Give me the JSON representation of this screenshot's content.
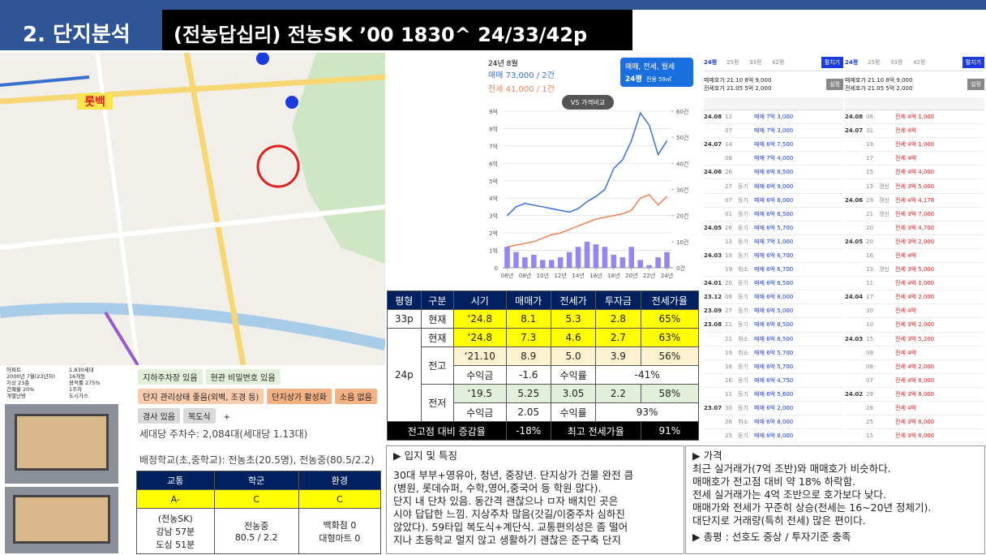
{
  "header": {
    "section": "2. 단지분석",
    "title": "(전농답십리) 전농SK ’00 1830^ 24/33/42p"
  },
  "map": {
    "label": "롯백"
  },
  "info": {
    "left": [
      "아파트",
      "2000년 7월(23년차)",
      "지상 23층",
      "건폐율 20%",
      "개별난방"
    ],
    "right": [
      "1,830세대",
      "16개동",
      "용적률 275%",
      "1주차",
      "도시가스"
    ]
  },
  "tags": [
    [
      "지하주차장 있음",
      "현관 비밀번호 있음"
    ],
    [
      "단지 관리상태 좋음(외벽, 조경 등)",
      "단지상가 활성화",
      "소음 없음"
    ],
    [
      "경사 있음",
      "복도식",
      "+"
    ]
  ],
  "parking": "세대당 주차수: 2,084대(세대당 1.13대)",
  "school": "배정학교(초,중학교): 전농초(20.5명), 전농중(80.5/2.2)",
  "grade": {
    "headers": [
      "교통",
      "학군",
      "환경"
    ],
    "grades": [
      "A-",
      "C",
      "C"
    ],
    "details": [
      [
        "(전농SK)",
        "강남 57분",
        "도심 51분"
      ],
      [
        "전농중",
        "80.5 / 2.2"
      ],
      [
        "백화점 0",
        "대형마트 0"
      ]
    ]
  },
  "chart_data": {
    "type": "line",
    "title": "24년 8월",
    "sale": "매매 73,000 / 2건",
    "rent": "전세 41,000 / 1건",
    "filter": "매매, 전세, 월세",
    "size": "24평",
    "area": "전용 59㎡",
    "compare": "VS 가격비교",
    "x": [
      2006,
      2007,
      2008,
      2009,
      2010,
      2011,
      2012,
      2013,
      2014,
      2015,
      2016,
      2017,
      2018,
      2019,
      2020,
      2021,
      2022,
      2023,
      2024
    ],
    "series": [
      {
        "name": "매매",
        "color": "#3b6fd8",
        "values": [
          3.0,
          3.5,
          3.7,
          3.6,
          3.5,
          3.4,
          3.3,
          3.2,
          3.4,
          3.8,
          4.1,
          4.5,
          5.7,
          6.2,
          7.3,
          8.9,
          8.2,
          6.5,
          7.3
        ]
      },
      {
        "name": "전세",
        "color": "#f08050",
        "values": [
          1.2,
          1.3,
          1.4,
          1.5,
          1.7,
          1.9,
          2.0,
          2.2,
          2.4,
          2.6,
          2.8,
          2.9,
          3.0,
          3.1,
          3.3,
          4.0,
          4.2,
          3.6,
          4.1
        ]
      },
      {
        "name": "거래량",
        "color": "#7b68ee",
        "type": "bar",
        "axis": "y2",
        "values": [
          8,
          6,
          4,
          5,
          3,
          3,
          4,
          6,
          8,
          10,
          9,
          8,
          5,
          4,
          8,
          3,
          1,
          4,
          6
        ]
      }
    ],
    "xlim": [
      2005.5,
      2024.5
    ],
    "xticks": [
      {
        "value": 2006,
        "label": "06년"
      },
      {
        "value": 2008,
        "label": "08년"
      },
      {
        "value": 2010,
        "label": "10년"
      },
      {
        "value": 2012,
        "label": "12년"
      },
      {
        "value": 2014,
        "label": "14년"
      },
      {
        "value": 2016,
        "label": "16년"
      },
      {
        "value": 2018,
        "label": "18년"
      },
      {
        "value": 2020,
        "label": "20년"
      },
      {
        "value": 2022,
        "label": "22년"
      },
      {
        "value": 2024,
        "label": "24년"
      }
    ],
    "ylim": [
      0,
      9
    ],
    "yticks": [
      0,
      {
        "value": 1,
        "label": "1억"
      },
      {
        "value": 2,
        "label": "2억"
      },
      {
        "value": 3,
        "label": "3억"
      },
      {
        "value": 4,
        "label": "4억"
      },
      {
        "value": 5,
        "label": "5억"
      },
      {
        "value": 6,
        "label": "6억"
      },
      {
        "value": 7,
        "label": "7억"
      },
      {
        "value": 8,
        "label": "8억"
      },
      {
        "value": 9,
        "label": "9억"
      }
    ],
    "y2lim": [
      0,
      60
    ],
    "y2ticks": [
      {
        "value": 0,
        "label": "0건"
      },
      {
        "value": 10,
        "label": "10건"
      },
      {
        "value": 20,
        "label": "20건"
      },
      {
        "value": 30,
        "label": "30건"
      },
      {
        "value": 40,
        "label": "40건"
      },
      {
        "value": 50,
        "label": "50건"
      },
      {
        "value": 60,
        "label": "60건"
      }
    ],
    "grid": true
  },
  "table": {
    "headers": [
      "평형",
      "구분",
      "시기",
      "매매가",
      "전세가",
      "투자금",
      "전세가율"
    ],
    "rows": [
      [
        "33p",
        "현재",
        "‘24.8",
        "8.1",
        "5.3",
        "2.8",
        "65%"
      ],
      [
        "24p",
        "현재",
        "‘24.8",
        "7.3",
        "4.6",
        "2.7",
        "63%"
      ],
      [
        "전고",
        "‘21.10",
        "8.9",
        "5.0",
        "3.9",
        "56%"
      ],
      [
        "수익금",
        "-1.6",
        "수익률",
        "-41%"
      ],
      [
        "전저",
        "‘19.5",
        "5.25",
        "3.05",
        "2.2",
        "58%"
      ],
      [
        "수익금",
        "2.05",
        "수익률",
        "93%"
      ]
    ],
    "footer": [
      "전고점 대비 증감율",
      "-18%",
      "최고 전세가율",
      "91%"
    ]
  },
  "features": {
    "title": "▶ 입지 및 특징",
    "lines": [
      "30대 부부+영유아, 청년, 중장년. 단지상가 건물 완전 큼",
      "(병원, 롯데슈퍼, 수학,영어,중국어 등 학원 많다).",
      "단지 내 단차 있음. 동간격 괜찮으나 ㅁ자 배치인 곳은",
      "시야 답답한 느낌. 지상주차 많음(갓길/이중주차 심하진",
      "않았다). 59타입 복도식+계단식. 교통편의성은 좀 떨어",
      "지나 초등학교 멀지 않고 생활하기 괜찮은 준구축 단지"
    ]
  },
  "price": {
    "title": "▶ 가격",
    "lines": [
      "최근 실거래가(7억 조반)와 매매호가 비슷하다.",
      "매매호가 전고점 대비 약 18% 하락함.",
      "전세 실거래가는 4억 조반으로 호가보다 낮다.",
      "매매가와 전세가 꾸준히 상승(전세는 16~20년 정체기).",
      "대단지로 거래량(특히 전세) 많은 편이다."
    ],
    "summary": "▶ 총평 : 선호도 중상 / 투자기준 충족"
  },
  "deals": [
    {
      "tabs": [
        "24평",
        "25평",
        "33평",
        "42평"
      ],
      "button": "펼치기",
      "ask": [
        "매매호가 21.10 8억 9,000",
        "전세호가 21.05 5억 2,000"
      ],
      "setting": "설정",
      "rows": [
        [
          "24.08",
          "12",
          null,
          "매매 7억 3,000"
        ],
        [
          null,
          "07",
          null,
          "매매 7억 3,000"
        ],
        [
          "24.07",
          "14",
          null,
          "매매 6억 7,500"
        ],
        [
          null,
          "08",
          null,
          "매매 7억 4,000"
        ],
        [
          "24.06",
          "26",
          null,
          "매매 6억 8,500"
        ],
        [
          null,
          "27",
          "등기",
          "매매 6억 9,000"
        ],
        [
          null,
          "07",
          "등기",
          "매매 6억 8,000"
        ],
        [
          null,
          "01",
          "등기",
          "매매 6억 6,500"
        ],
        [
          "24.05",
          "26",
          "등기",
          "매매 6억 5,700"
        ],
        [
          null,
          "13",
          "등기",
          "매매 7억 1,000"
        ],
        [
          "24.03",
          "19",
          "등기",
          "매매 6억 6,700"
        ],
        [
          null,
          "19",
          "취소",
          "매매 6억 6,700"
        ],
        [
          "24.01",
          "20",
          "등기",
          "매매 6억 6,500"
        ],
        [
          "23.12",
          "08",
          "등기",
          "매매 6억 8,000"
        ],
        [
          "23.09",
          "27",
          "등기",
          "매매 6억 5,000"
        ],
        [
          "23.08",
          "21",
          "등기",
          "매매 6억 8,500"
        ],
        [
          null,
          "21",
          "취소",
          "매매 6억 8,500"
        ],
        [
          null,
          "19",
          "취소",
          "매매 6억 5,700"
        ],
        [
          null,
          "18",
          "등기",
          "매매 6억 5,700"
        ],
        [
          null,
          "16",
          "등기",
          "매매 6억 4,750"
        ],
        [
          null,
          "11",
          "등기",
          "매매 6억 5,600"
        ],
        [
          "23.07",
          "30",
          "등기",
          "매매 6억 2,000"
        ],
        [
          null,
          "26",
          "취소",
          "매매 6억 8,000"
        ],
        [
          null,
          "25",
          "등기",
          "매매 6억 8,000"
        ]
      ]
    },
    {
      "tabs": [
        "24평",
        "25평",
        "33평",
        "42평"
      ],
      "button": "펼치기",
      "ask": [
        "매매호가 21.10 8억 9,000",
        "전세호가 21.05 5억 2,000"
      ],
      "setting": "설정",
      "rows": [
        [
          "24.08",
          "06",
          null,
          "전세 4억 1,000"
        ],
        [
          "24.07",
          "31",
          null,
          "전세 4억"
        ],
        [
          null,
          "19",
          null,
          "전세 4억 1,000"
        ],
        [
          null,
          "17",
          null,
          "전세 4억"
        ],
        [
          null,
          "15",
          null,
          "전세 4억 4,000"
        ],
        [
          null,
          "13",
          "갱신",
          "전세 3억 5,000"
        ],
        [
          "24.06",
          "29",
          "갱신",
          "전세 4억 4,178"
        ],
        [
          null,
          "21",
          "갱신",
          "전세 3억 7,000"
        ],
        [
          null,
          "20",
          null,
          "전세 3억 4,700"
        ],
        [
          "24.05",
          "20",
          null,
          "전세 3억 2,000"
        ],
        [
          null,
          "16",
          null,
          "전세 4억"
        ],
        [
          null,
          "13",
          "갱신",
          "전세 3억 5,000"
        ],
        [
          null,
          "11",
          null,
          "전세 4억 1,000"
        ],
        [
          "24.04",
          "17",
          null,
          "전세 4억 2,000"
        ],
        [
          null,
          "30",
          null,
          "전세 4억"
        ],
        [
          null,
          "10",
          null,
          "전세 3억 2,000"
        ],
        [
          "24.03",
          "15",
          null,
          "전세 3억 5,200"
        ],
        [
          null,
          "09",
          null,
          "전세 4억"
        ],
        [
          null,
          "08",
          null,
          "전세 4억 2,000"
        ],
        [
          null,
          "07",
          null,
          "전세 4억 8,000"
        ],
        [
          "24.02",
          "29",
          null,
          "전세 3억 8,000"
        ],
        [
          null,
          "28",
          null,
          "전세 4억"
        ],
        [
          null,
          "25",
          null,
          "전세 3억 8,000"
        ],
        [
          null,
          "15",
          null,
          "전세 3억 8,000"
        ]
      ]
    }
  ]
}
